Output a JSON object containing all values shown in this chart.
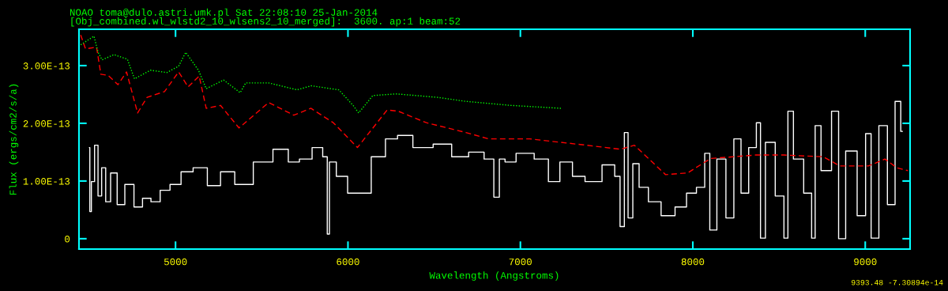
{
  "chart_data": {
    "type": "line",
    "title": "NOAO toma@dulo.astri.umk.pl Sat 22:08:10 25-Jan-2014",
    "subtitle": "[Obj_combined.wl_wlstd2_10_wlsens2_10_merged]:  3600. ap:1 beam:52",
    "xlabel": "Wavelength (Angstroms)",
    "ylabel": "Flux (ergs/cm2/s/a)",
    "annotations": [
      "9393.48 -7.30894e-14"
    ],
    "xlim": [
      4440,
      9260
    ],
    "ylim": [
      -1.8e-14,
      3.63e-13
    ],
    "xticks": [
      5000,
      6000,
      7000,
      8000,
      9000
    ],
    "yticks": [
      {
        "value": 0,
        "label": "0"
      },
      {
        "value": 1e-13,
        "label": "1.00E-13"
      },
      {
        "value": 2e-13,
        "label": "2.00E-13"
      },
      {
        "value": 3e-13,
        "label": "3.00E-13"
      }
    ],
    "grid": false,
    "series": [
      {
        "type": "step",
        "color": "#ffffff",
        "line_style": "solid",
        "x": [
          4501,
          4505,
          4519,
          4542,
          4559,
          4584,
          4606,
          4641,
          4682,
          4730,
          4788,
          4829,
          4886,
          4936,
          5000,
          5064,
          5140,
          5229,
          5293,
          5394,
          5508,
          5622,
          5686,
          5751,
          5833,
          5874,
          5886,
          5899,
          5966,
          6030,
          6094,
          6176,
          6259,
          6316,
          6437,
          6551,
          6652,
          6748,
          6831,
          6861,
          6895,
          6927,
          7023,
          7137,
          7188,
          7270,
          7334,
          7416,
          7531,
          7563,
          7593,
          7613,
          7636,
          7668,
          7709,
          7776,
          7856,
          7938,
          7989,
          8053,
          8085,
          8112,
          8167,
          8217,
          8259,
          8300,
          8348,
          8389,
          8396,
          8446,
          8510,
          8547,
          8556,
          8611,
          8675,
          8703,
          8716,
          8771,
          8838,
          8853,
          8920,
          8986,
          9018,
          9050,
          9108,
          9149,
          9197,
          9215
        ],
        "values": [
          1.58e-13,
          4.7e-14,
          9.9e-14,
          1.62e-13,
          7.4e-14,
          1.23e-13,
          6.4e-14,
          1.14e-13,
          5.9e-14,
          9.4e-14,
          5.5e-14,
          7e-14,
          6.4e-14,
          8.4e-14,
          9.4e-14,
          1.16e-13,
          1.23e-13,
          9.2e-14,
          1.16e-13,
          9.4e-14,
          1.33e-13,
          1.55e-13,
          1.33e-13,
          1.38e-13,
          1.58e-13,
          1.42e-13,
          8e-15,
          1.33e-13,
          1.08e-13,
          7.9e-14,
          7.9e-14,
          1.42e-13,
          1.73e-13,
          1.79e-13,
          1.58e-13,
          1.64e-13,
          1.42e-13,
          1.5e-13,
          1.38e-13,
          7.2e-14,
          1.38e-13,
          1.33e-13,
          1.48e-13,
          1.38e-13,
          9.9e-14,
          1.33e-13,
          1.08e-13,
          9.9e-14,
          1.28e-13,
          1.08e-13,
          2.1e-14,
          1.84e-13,
          3.6e-14,
          1.3e-13,
          8.9e-14,
          6.4e-14,
          4e-14,
          5.5e-14,
          7.9e-14,
          8.9e-14,
          1.48e-13,
          1.5e-14,
          1.38e-13,
          3.6e-14,
          1.73e-13,
          7.9e-14,
          1.58e-13,
          2.01e-13,
          1e-15,
          1.67e-13,
          7.4e-14,
          1e-15,
          2.21e-13,
          1.38e-13,
          7.9e-14,
          1e-15,
          1.96e-13,
          1.18e-13,
          2.21e-13,
          0,
          1.52e-13,
          4e-14,
          1.82e-13,
          1e-15,
          1.96e-13,
          5.9e-14,
          2.38e-13,
          1.86e-13
        ]
      },
      {
        "color": "#ff0000",
        "line_style": "dashed",
        "x": [
          4450,
          4478,
          4542,
          4567,
          4609,
          4666,
          4716,
          4780,
          4835,
          4936,
          5018,
          5073,
          5137,
          5178,
          5261,
          5368,
          5540,
          5686,
          5785,
          5915,
          6055,
          6227,
          6291,
          6455,
          6684,
          6815,
          7055,
          7384,
          7581,
          7661,
          7842,
          7970,
          8103,
          8364,
          8529,
          8757,
          8853,
          9018,
          9114,
          9183,
          9247
        ],
        "values": [
          3.53e-13,
          3.29e-13,
          3.32e-13,
          2.85e-13,
          2.83e-13,
          2.67e-13,
          2.89e-13,
          2.18e-13,
          2.45e-13,
          2.55e-13,
          2.89e-13,
          2.63e-13,
          2.82e-13,
          2.26e-13,
          2.31e-13,
          1.92e-13,
          2.36e-13,
          2.14e-13,
          2.26e-13,
          2.01e-13,
          1.58e-13,
          2.23e-13,
          2.21e-13,
          2.01e-13,
          1.84e-13,
          1.73e-13,
          1.73e-13,
          1.62e-13,
          1.55e-13,
          1.62e-13,
          1.11e-13,
          1.14e-13,
          1.39e-13,
          1.45e-13,
          1.45e-13,
          1.42e-13,
          1.26e-13,
          1.26e-13,
          1.38e-13,
          1.23e-13,
          1.18e-13
        ]
      },
      {
        "color": "#00ff00",
        "line_style": "dotted",
        "x": [
          4450,
          4527,
          4551,
          4574,
          4643,
          4721,
          4762,
          4854,
          4950,
          5018,
          5059,
          5133,
          5178,
          5279,
          5375,
          5407,
          5540,
          5705,
          5787,
          5947,
          6030,
          6062,
          6144,
          6277,
          6519,
          6684,
          6945,
          7236
        ],
        "values": [
          3.36e-13,
          3.51e-13,
          3.23e-13,
          3.1e-13,
          3.19e-13,
          3.11e-13,
          2.77e-13,
          2.92e-13,
          2.88e-13,
          2.99e-13,
          3.23e-13,
          2.92e-13,
          2.6e-13,
          2.75e-13,
          2.53e-13,
          2.7e-13,
          2.7e-13,
          2.58e-13,
          2.65e-13,
          2.58e-13,
          2.31e-13,
          2.18e-13,
          2.48e-13,
          2.51e-13,
          2.45e-13,
          2.38e-13,
          2.31e-13,
          2.26e-13
        ]
      }
    ]
  }
}
